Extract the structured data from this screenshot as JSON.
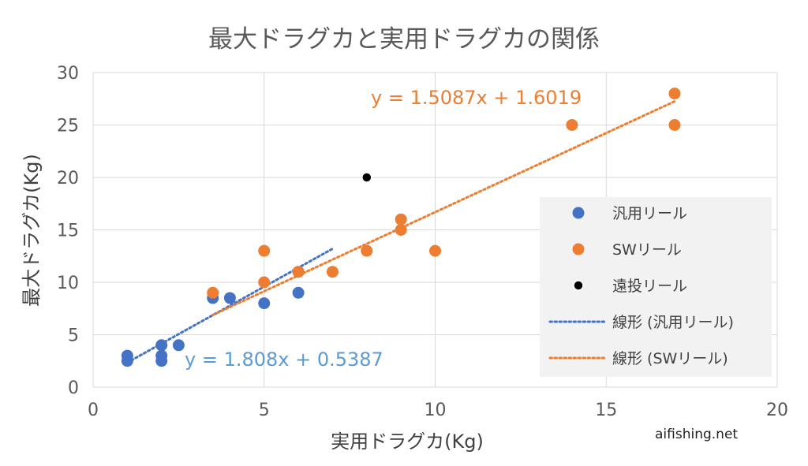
{
  "chart_data": {
    "type": "scatter",
    "title": "最大ドラグカと実用ドラグカの関係",
    "xlabel": "実用ドラグカ(Kg)",
    "ylabel": "最大ドラグカ(Kg)",
    "xlim": [
      0,
      20
    ],
    "ylim": [
      0,
      30
    ],
    "xticks": [
      0,
      5,
      10,
      15,
      20
    ],
    "yticks": [
      0,
      5,
      10,
      15,
      20,
      25,
      30
    ],
    "grid": true,
    "legend_position": "right",
    "series": [
      {
        "name": "汎用リール",
        "color": "#4472C4",
        "points": [
          [
            1,
            3
          ],
          [
            1,
            2.5
          ],
          [
            2,
            4
          ],
          [
            2,
            3
          ],
          [
            2,
            2.5
          ],
          [
            2.5,
            4
          ],
          [
            3.5,
            8.5
          ],
          [
            4,
            8.5
          ],
          [
            5,
            8
          ],
          [
            6,
            11
          ],
          [
            6,
            9
          ]
        ]
      },
      {
        "name": "SWリール",
        "color": "#ED7D31",
        "points": [
          [
            3.5,
            9
          ],
          [
            5,
            13
          ],
          [
            5,
            10
          ],
          [
            6,
            11
          ],
          [
            7,
            11
          ],
          [
            8,
            13
          ],
          [
            9,
            16
          ],
          [
            9,
            15
          ],
          [
            10,
            13
          ],
          [
            14,
            25
          ],
          [
            17,
            28
          ],
          [
            17,
            25
          ]
        ]
      },
      {
        "name": "遠投リール",
        "color": "#000000",
        "points": [
          [
            8,
            20
          ]
        ]
      }
    ],
    "trendlines": [
      {
        "name": "線形 (汎用リール)",
        "color": "#4472C4",
        "slope": 1.808,
        "intercept": 0.5387,
        "x_range": [
          1,
          7
        ],
        "equation": "y = 1.808x + 0.5387",
        "equation_color": "#5B9BD5"
      },
      {
        "name": "線形 (SWリール)",
        "color": "#ED7D31",
        "slope": 1.5087,
        "intercept": 1.6019,
        "x_range": [
          3.5,
          17
        ],
        "equation": "y = 1.5087x + 1.6019",
        "equation_color": "#ED7D31"
      }
    ]
  },
  "watermark": "aifishing.net"
}
